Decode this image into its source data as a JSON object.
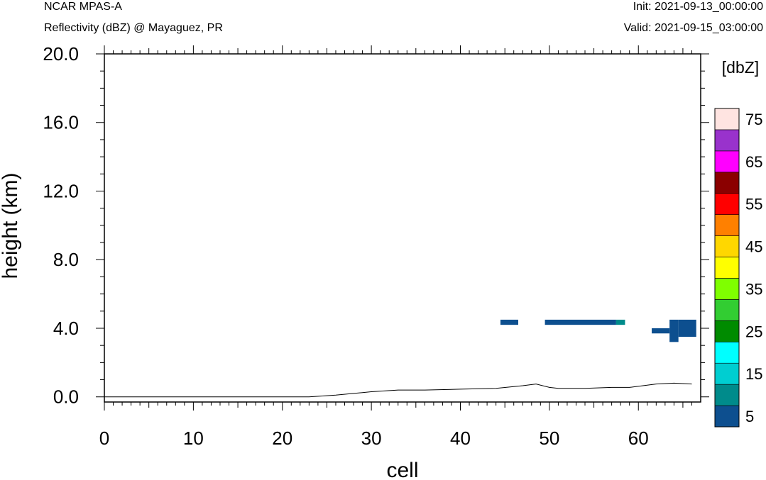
{
  "header": {
    "model": "NCAR MPAS-A",
    "field": "Reflectivity (dBZ) @ Mayaguez, PR",
    "init": "Init: 2021-09-13_00:00:00",
    "valid": "Valid: 2021-09-15_03:00:00"
  },
  "chart_data": {
    "type": "heatmap",
    "xlabel": "cell",
    "ylabel": "height (km)",
    "xlim": [
      0,
      67
    ],
    "ylim": [
      -0.3,
      20.0
    ],
    "x_ticks": [
      "0",
      "10",
      "20",
      "30",
      "40",
      "50",
      "60"
    ],
    "y_ticks": [
      "0.0",
      "4.0",
      "8.0",
      "12.0",
      "16.0",
      "20.0"
    ],
    "grid": false,
    "colorbar": {
      "title": "[dbZ]",
      "levels": [
        5,
        10,
        15,
        20,
        25,
        30,
        35,
        40,
        45,
        50,
        55,
        60,
        65,
        70,
        75
      ],
      "labels": [
        "5",
        "15",
        "25",
        "35",
        "45",
        "55",
        "65",
        "75"
      ],
      "colors": [
        "#0d4f8f",
        "#008b8b",
        "#00ced1",
        "#00ffff",
        "#008b00",
        "#32cd32",
        "#7fff00",
        "#ffff00",
        "#ffd700",
        "#ff8000",
        "#ff0000",
        "#8b0000",
        "#ff00ff",
        "#9932cc",
        "#ffe4e1"
      ]
    },
    "cells": [
      {
        "x0": 44.5,
        "x1": 46.5,
        "y0": 4.2,
        "y1": 4.5,
        "dbz": 5
      },
      {
        "x0": 49.5,
        "x1": 57.5,
        "y0": 4.2,
        "y1": 4.5,
        "dbz": 5
      },
      {
        "x0": 57.5,
        "x1": 58.5,
        "y0": 4.2,
        "y1": 4.5,
        "dbz": 10
      },
      {
        "x0": 61.5,
        "x1": 63.5,
        "y0": 3.7,
        "y1": 4.0,
        "dbz": 5
      },
      {
        "x0": 63.5,
        "x1": 64.5,
        "y0": 3.2,
        "y1": 4.5,
        "dbz": 5
      },
      {
        "x0": 64.5,
        "x1": 66.5,
        "y0": 3.5,
        "y1": 4.5,
        "dbz": 5
      }
    ],
    "terrain": {
      "x": [
        0,
        23,
        26,
        28,
        30,
        33,
        36,
        40,
        44,
        47,
        48.5,
        50,
        51,
        54,
        57,
        59,
        62,
        64,
        66
      ],
      "y": [
        0.0,
        0.0,
        0.1,
        0.2,
        0.3,
        0.4,
        0.4,
        0.45,
        0.5,
        0.65,
        0.75,
        0.55,
        0.5,
        0.5,
        0.55,
        0.55,
        0.75,
        0.8,
        0.75
      ]
    }
  }
}
